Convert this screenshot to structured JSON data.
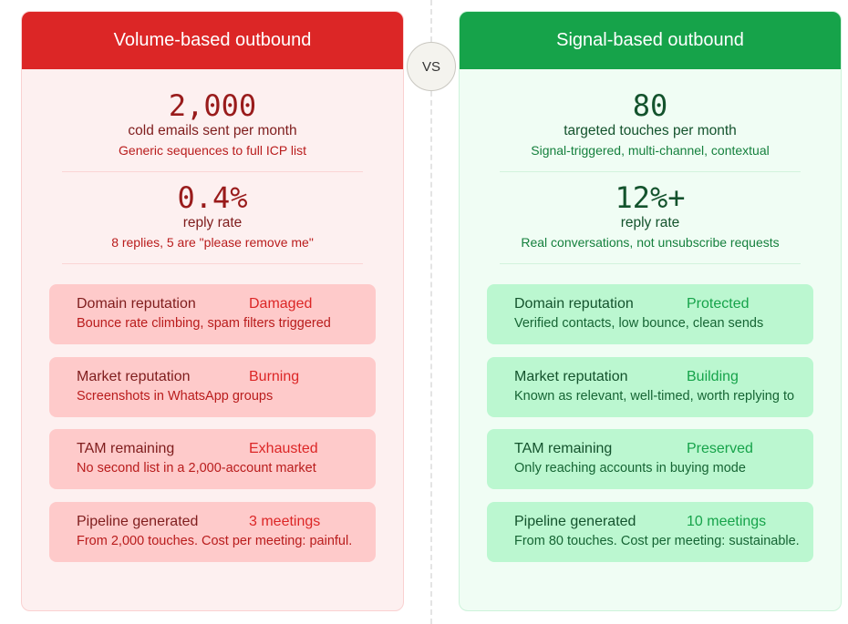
{
  "vs_label": "VS",
  "left": {
    "title": "Volume-based outbound",
    "colors": {
      "header": "#dc2626",
      "background": "#fdf0f0",
      "card": "#fecaca"
    },
    "stats": [
      {
        "value": "2,000",
        "label": "cold emails sent per month",
        "sub": "Generic sequences to full ICP list"
      },
      {
        "value": "0.4%",
        "label": "reply rate",
        "sub": "8 replies, 5 are \"please remove me\""
      }
    ],
    "cards": [
      {
        "title": "Domain reputation",
        "status": "Damaged",
        "desc": "Bounce rate climbing, spam filters triggered"
      },
      {
        "title": "Market reputation",
        "status": "Burning",
        "desc": "Screenshots in WhatsApp groups"
      },
      {
        "title": "TAM remaining",
        "status": "Exhausted",
        "desc": "No second list in a 2,000-account market"
      },
      {
        "title": "Pipeline generated",
        "status": "3 meetings",
        "desc": "From 2,000 touches. Cost per meeting: painful."
      }
    ]
  },
  "right": {
    "title": "Signal-based outbound",
    "colors": {
      "header": "#16a34a",
      "background": "#f0fdf4",
      "card": "#bbf7d0"
    },
    "stats": [
      {
        "value": "80",
        "label": "targeted touches per month",
        "sub": "Signal-triggered, multi-channel, contextual"
      },
      {
        "value": "12%+",
        "label": "reply rate",
        "sub": "Real conversations, not unsubscribe requests"
      }
    ],
    "cards": [
      {
        "title": "Domain reputation",
        "status": "Protected",
        "desc": "Verified contacts, low bounce, clean sends"
      },
      {
        "title": "Market reputation",
        "status": "Building",
        "desc": "Known as relevant, well-timed, worth replying to"
      },
      {
        "title": "TAM remaining",
        "status": "Preserved",
        "desc": "Only reaching accounts in buying mode"
      },
      {
        "title": "Pipeline generated",
        "status": "10 meetings",
        "desc": "From 80 touches. Cost per meeting: sustainable."
      }
    ]
  }
}
